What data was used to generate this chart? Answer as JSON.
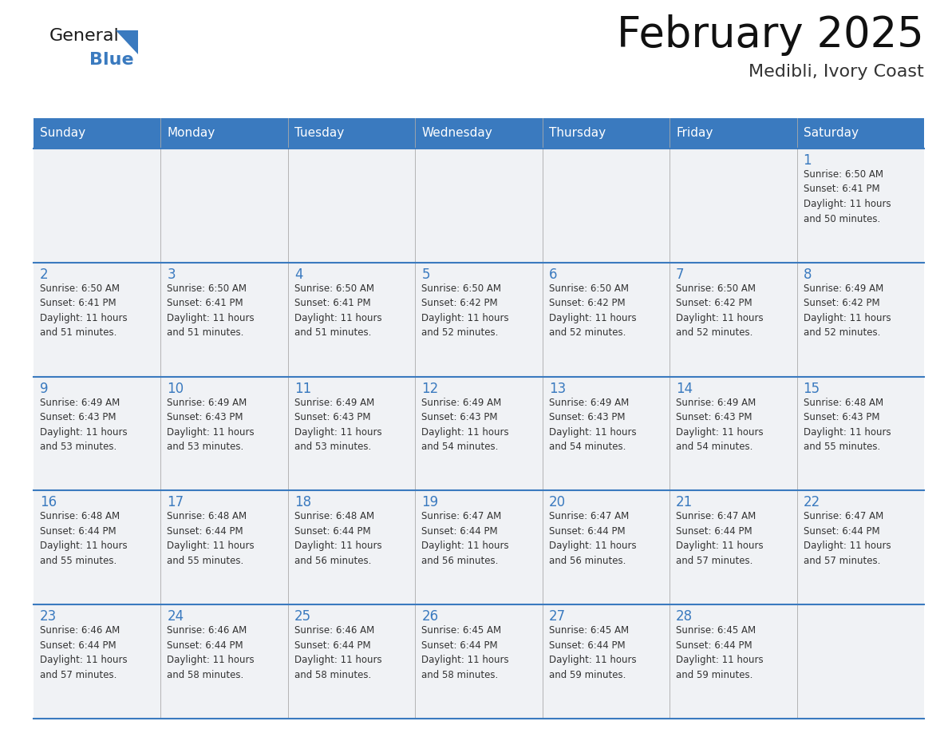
{
  "title": "February 2025",
  "subtitle": "Medibli, Ivory Coast",
  "header_color": "#3a7abf",
  "header_text_color": "#ffffff",
  "bg_color": "#ffffff",
  "cell_bg_light": "#f0f2f5",
  "day_number_color": "#3a7abf",
  "text_color": "#333333",
  "grid_color": "#3a7abf",
  "days_of_week": [
    "Sunday",
    "Monday",
    "Tuesday",
    "Wednesday",
    "Thursday",
    "Friday",
    "Saturday"
  ],
  "calendar_data": [
    [
      null,
      null,
      null,
      null,
      null,
      null,
      {
        "day": 1,
        "sunrise": "6:50 AM",
        "sunset": "6:41 PM",
        "daylight": "11 hours and 50 minutes."
      }
    ],
    [
      {
        "day": 2,
        "sunrise": "6:50 AM",
        "sunset": "6:41 PM",
        "daylight": "11 hours and 51 minutes."
      },
      {
        "day": 3,
        "sunrise": "6:50 AM",
        "sunset": "6:41 PM",
        "daylight": "11 hours and 51 minutes."
      },
      {
        "day": 4,
        "sunrise": "6:50 AM",
        "sunset": "6:41 PM",
        "daylight": "11 hours and 51 minutes."
      },
      {
        "day": 5,
        "sunrise": "6:50 AM",
        "sunset": "6:42 PM",
        "daylight": "11 hours and 52 minutes."
      },
      {
        "day": 6,
        "sunrise": "6:50 AM",
        "sunset": "6:42 PM",
        "daylight": "11 hours and 52 minutes."
      },
      {
        "day": 7,
        "sunrise": "6:50 AM",
        "sunset": "6:42 PM",
        "daylight": "11 hours and 52 minutes."
      },
      {
        "day": 8,
        "sunrise": "6:49 AM",
        "sunset": "6:42 PM",
        "daylight": "11 hours and 52 minutes."
      }
    ],
    [
      {
        "day": 9,
        "sunrise": "6:49 AM",
        "sunset": "6:43 PM",
        "daylight": "11 hours and 53 minutes."
      },
      {
        "day": 10,
        "sunrise": "6:49 AM",
        "sunset": "6:43 PM",
        "daylight": "11 hours and 53 minutes."
      },
      {
        "day": 11,
        "sunrise": "6:49 AM",
        "sunset": "6:43 PM",
        "daylight": "11 hours and 53 minutes."
      },
      {
        "day": 12,
        "sunrise": "6:49 AM",
        "sunset": "6:43 PM",
        "daylight": "11 hours and 54 minutes."
      },
      {
        "day": 13,
        "sunrise": "6:49 AM",
        "sunset": "6:43 PM",
        "daylight": "11 hours and 54 minutes."
      },
      {
        "day": 14,
        "sunrise": "6:49 AM",
        "sunset": "6:43 PM",
        "daylight": "11 hours and 54 minutes."
      },
      {
        "day": 15,
        "sunrise": "6:48 AM",
        "sunset": "6:43 PM",
        "daylight": "11 hours and 55 minutes."
      }
    ],
    [
      {
        "day": 16,
        "sunrise": "6:48 AM",
        "sunset": "6:44 PM",
        "daylight": "11 hours and 55 minutes."
      },
      {
        "day": 17,
        "sunrise": "6:48 AM",
        "sunset": "6:44 PM",
        "daylight": "11 hours and 55 minutes."
      },
      {
        "day": 18,
        "sunrise": "6:48 AM",
        "sunset": "6:44 PM",
        "daylight": "11 hours and 56 minutes."
      },
      {
        "day": 19,
        "sunrise": "6:47 AM",
        "sunset": "6:44 PM",
        "daylight": "11 hours and 56 minutes."
      },
      {
        "day": 20,
        "sunrise": "6:47 AM",
        "sunset": "6:44 PM",
        "daylight": "11 hours and 56 minutes."
      },
      {
        "day": 21,
        "sunrise": "6:47 AM",
        "sunset": "6:44 PM",
        "daylight": "11 hours and 57 minutes."
      },
      {
        "day": 22,
        "sunrise": "6:47 AM",
        "sunset": "6:44 PM",
        "daylight": "11 hours and 57 minutes."
      }
    ],
    [
      {
        "day": 23,
        "sunrise": "6:46 AM",
        "sunset": "6:44 PM",
        "daylight": "11 hours and 57 minutes."
      },
      {
        "day": 24,
        "sunrise": "6:46 AM",
        "sunset": "6:44 PM",
        "daylight": "11 hours and 58 minutes."
      },
      {
        "day": 25,
        "sunrise": "6:46 AM",
        "sunset": "6:44 PM",
        "daylight": "11 hours and 58 minutes."
      },
      {
        "day": 26,
        "sunrise": "6:45 AM",
        "sunset": "6:44 PM",
        "daylight": "11 hours and 58 minutes."
      },
      {
        "day": 27,
        "sunrise": "6:45 AM",
        "sunset": "6:44 PM",
        "daylight": "11 hours and 59 minutes."
      },
      {
        "day": 28,
        "sunrise": "6:45 AM",
        "sunset": "6:44 PM",
        "daylight": "11 hours and 59 minutes."
      },
      null
    ]
  ]
}
